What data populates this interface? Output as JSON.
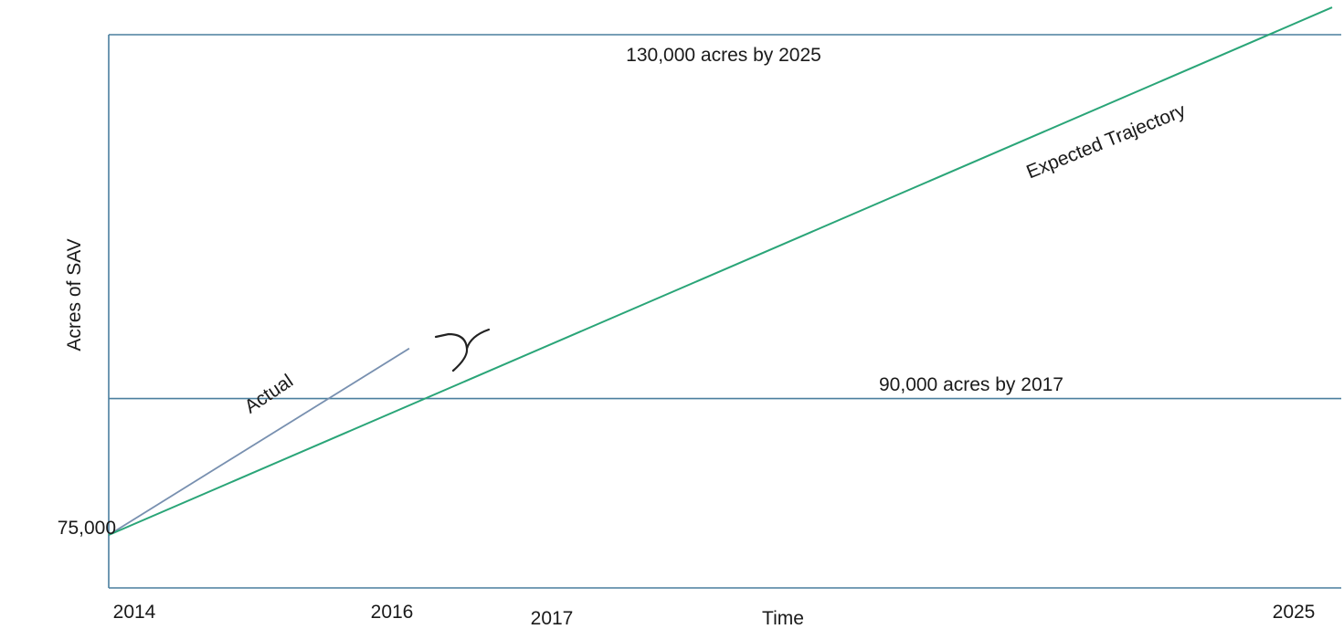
{
  "chart_data": {
    "type": "line",
    "title": "",
    "xlabel": "Time",
    "ylabel": "Acres of SAV",
    "x_ticks": [
      "2014",
      "2016",
      "2017",
      "2025"
    ],
    "y_ticks": [
      "75,000"
    ],
    "xlim": [
      2014,
      2025.2
    ],
    "ylim": [
      67000,
      130000
    ],
    "grid": false,
    "series": [
      {
        "name": "Actual",
        "color": "#7890b0",
        "x": [
          2014,
          2016.8
        ],
        "y": [
          75000,
          95500
        ]
      },
      {
        "name": "Expected Trajectory",
        "color": "#2aa578",
        "x": [
          2014,
          2025.4
        ],
        "y": [
          75000,
          133000
        ]
      }
    ],
    "reference_lines": [
      {
        "label": "130,000 acres by 2025",
        "y": 130000,
        "color": "#4a7f9e"
      },
      {
        "label": "90,000 acres by 2017",
        "y": 90000,
        "color": "#4a7f9e"
      }
    ]
  }
}
